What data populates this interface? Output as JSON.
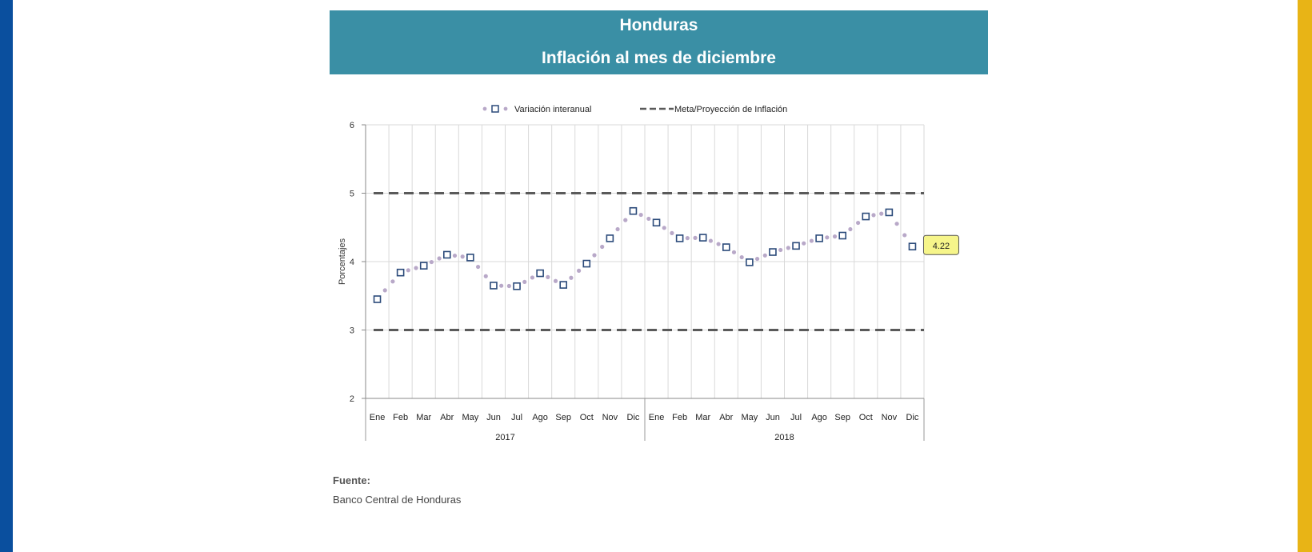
{
  "header": {
    "title": "Honduras",
    "subtitle": "Inflación al mes de diciembre"
  },
  "source": {
    "label": "Fuente:",
    "text": "Banco Central de Honduras"
  },
  "colors": {
    "left_band": "#0a4f9e",
    "right_band": "#e8b416",
    "header_bg": "#3a8fa5",
    "marker": "#2b4a7a",
    "dots": "#b8a8c8",
    "target_line": "#5a5a5a",
    "callout_bg": "#f6f58a"
  },
  "chart_data": {
    "type": "line",
    "title": "",
    "xlabel": "",
    "ylabel": "Porcentajes",
    "ylim": [
      2,
      6
    ],
    "yticks": [
      2,
      3,
      4,
      5,
      6
    ],
    "grid": true,
    "legend_position": "top",
    "categories": [
      "Ene",
      "Feb",
      "Mar",
      "Abr",
      "May",
      "Jun",
      "Jul",
      "Ago",
      "Sep",
      "Oct",
      "Nov",
      "Dic",
      "Ene",
      "Feb",
      "Mar",
      "Abr",
      "May",
      "Jun",
      "Jul",
      "Ago",
      "Sep",
      "Oct",
      "Nov",
      "Dic"
    ],
    "groups": [
      {
        "label": "2017",
        "count": 12
      },
      {
        "label": "2018",
        "count": 12
      }
    ],
    "series": [
      {
        "name": "Variación interanual",
        "style": "markers",
        "values": [
          3.45,
          3.84,
          3.94,
          4.1,
          4.06,
          3.65,
          3.64,
          3.83,
          3.66,
          3.97,
          4.34,
          4.74,
          4.57,
          4.34,
          4.35,
          4.21,
          3.99,
          4.14,
          4.23,
          4.34,
          4.38,
          4.66,
          4.72,
          4.22
        ]
      },
      {
        "name": "Meta/Proyección de Inflación",
        "style": "dashed",
        "bands": [
          5,
          3
        ]
      }
    ],
    "annotation": {
      "label": "4.22",
      "index": 23
    }
  }
}
